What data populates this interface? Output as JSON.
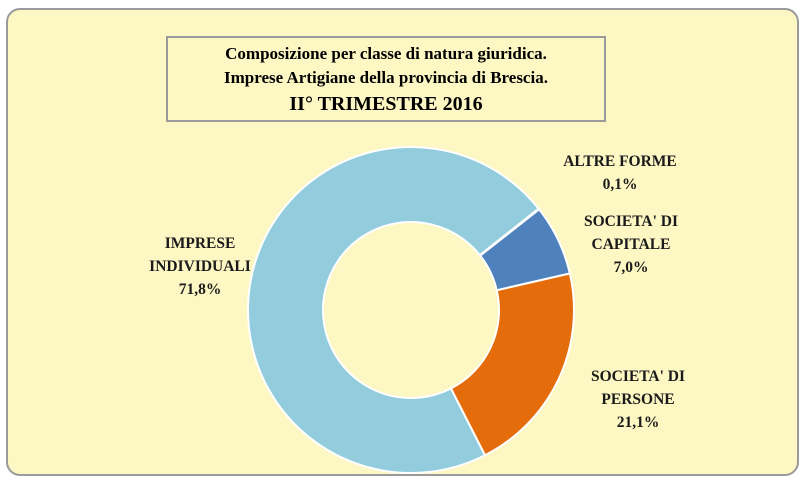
{
  "chart_data": {
    "type": "donut",
    "title": [
      "Composizione per classe di natura giuridica.",
      "Imprese Artigiane  della provincia di Brescia.",
      "II° TRIMESTRE 2016"
    ],
    "categories": [
      "ALTRE FORME",
      "SOCIETA' DI CAPITALE",
      "SOCIETA' DI PERSONE",
      "IMPRESE INDIVIDUALI"
    ],
    "values": [
      0.1,
      7.0,
      21.1,
      71.8
    ],
    "value_labels": [
      "0,1%",
      "7,0%",
      "21,1%",
      "71,8%"
    ],
    "colors": [
      "#dfe7ef",
      "#4f81bd",
      "#e46c0a",
      "#93cddd"
    ]
  }
}
